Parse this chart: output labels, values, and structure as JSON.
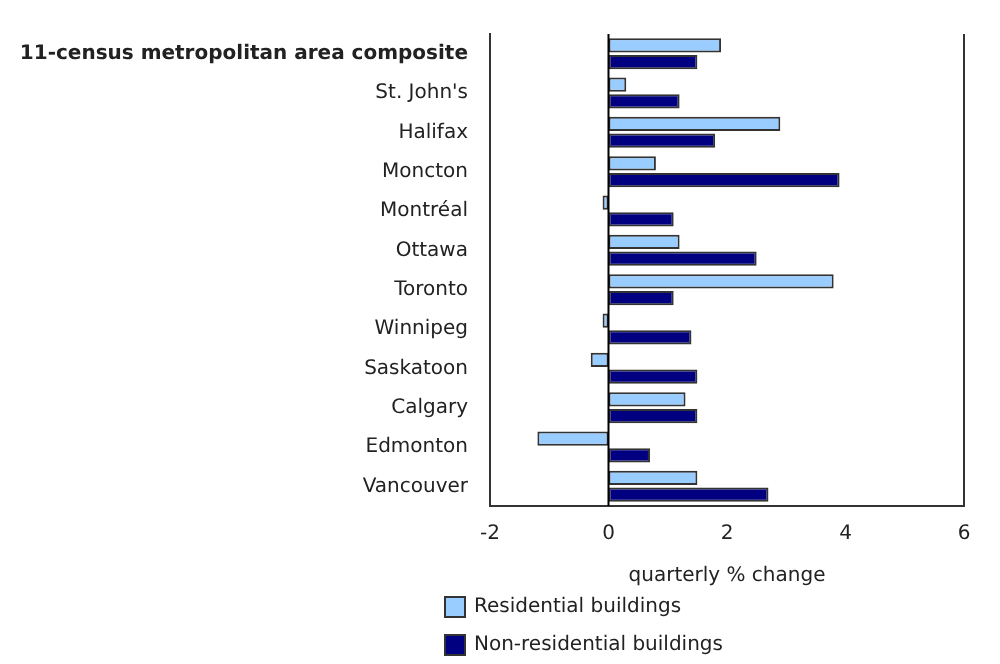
{
  "chart_data": {
    "type": "bar",
    "orientation": "horizontal",
    "xlabel": "quarterly % change",
    "categories": [
      "11-census metropolitan area composite",
      "St. John's",
      "Halifax",
      "Moncton",
      "Montréal",
      "Ottawa",
      "Toronto",
      "Winnipeg",
      "Saskatoon",
      "Calgary",
      "Edmonton",
      "Vancouver"
    ],
    "series": [
      {
        "name": "Residential buildings",
        "color": "#99ccff",
        "values": [
          1.9,
          0.3,
          2.9,
          0.8,
          -0.1,
          1.2,
          3.8,
          -0.1,
          -0.3,
          1.3,
          -1.2,
          1.5
        ]
      },
      {
        "name": "Non-residential buildings",
        "color": "#000080",
        "values": [
          1.5,
          1.2,
          1.8,
          3.9,
          1.1,
          2.5,
          1.1,
          1.4,
          1.5,
          1.5,
          0.7,
          2.7
        ]
      }
    ],
    "xlim": [
      -2,
      6
    ],
    "xticks": [
      -2,
      0,
      2,
      4,
      6
    ],
    "grid": false,
    "legend": "bottom",
    "ref_lines": [
      {
        "axis": "x",
        "value": 0
      }
    ]
  }
}
